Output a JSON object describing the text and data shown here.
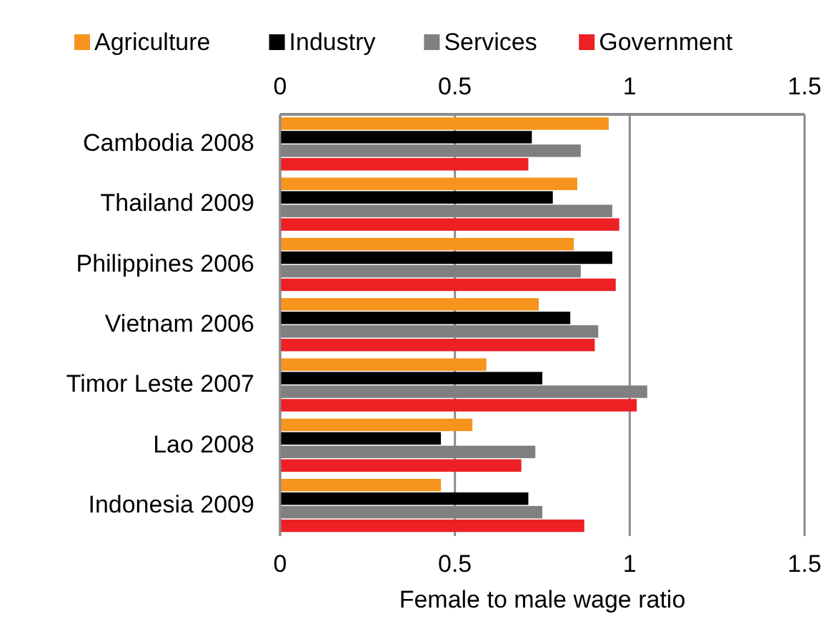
{
  "chart_data": {
    "type": "bar",
    "orientation": "horizontal",
    "xlabel": "Female to male wage ratio",
    "categories": [
      "Cambodia 2008",
      "Thailand 2009",
      "Philippines 2006",
      "Vietnam 2006",
      "Timor Leste 2007",
      "Lao 2008",
      "Indonesia 2009"
    ],
    "series": [
      {
        "name": "Agriculture",
        "color": "#f7941d",
        "values": [
          0.94,
          0.85,
          0.84,
          0.74,
          0.59,
          0.55,
          0.46
        ]
      },
      {
        "name": "Industry",
        "color": "#000000",
        "values": [
          0.72,
          0.78,
          0.95,
          0.83,
          0.75,
          0.46,
          0.71
        ]
      },
      {
        "name": "Services",
        "color": "#808080",
        "values": [
          0.86,
          0.95,
          0.86,
          0.91,
          1.05,
          0.73,
          0.75
        ]
      },
      {
        "name": "Government",
        "color": "#ed2024",
        "values": [
          0.71,
          0.97,
          0.96,
          0.9,
          1.02,
          0.69,
          0.87
        ]
      }
    ],
    "xlim": [
      0,
      1.5
    ],
    "xticks": [
      0,
      0.5,
      1,
      1.5
    ],
    "x2lim": [
      0,
      1.5
    ],
    "x2ticks": [
      0,
      0.5,
      1,
      1.5
    ],
    "grid": "x",
    "legend": "top"
  }
}
